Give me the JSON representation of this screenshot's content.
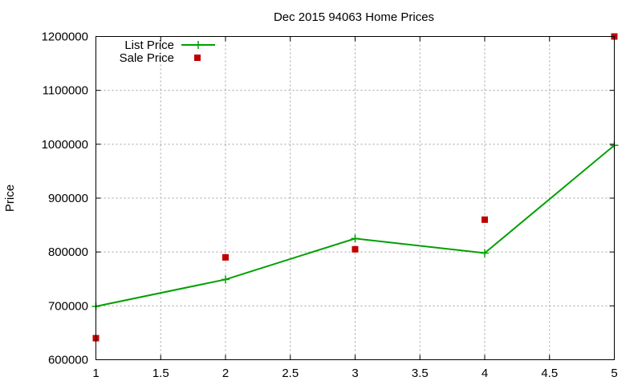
{
  "chart_data": {
    "type": "line",
    "title": "Dec 2015 94063 Home Prices",
    "xlabel": "",
    "ylabel": "Price",
    "xlim": [
      1,
      5
    ],
    "ylim": [
      600000,
      1200000
    ],
    "x_ticks": [
      "1",
      "1.5",
      "2",
      "2.5",
      "3",
      "3.5",
      "4",
      "4.5",
      "5"
    ],
    "y_ticks": [
      "600000",
      "700000",
      "800000",
      "900000",
      "1000000",
      "1100000",
      "1200000"
    ],
    "grid": true,
    "legend_position": "top-left",
    "series": [
      {
        "name": "List Price",
        "style": "line-plus",
        "color": "#00a000",
        "x": [
          1,
          2,
          3,
          4,
          5
        ],
        "y": [
          699000,
          749000,
          825000,
          798000,
          998000
        ]
      },
      {
        "name": "Sale Price",
        "style": "square",
        "color": "#c00000",
        "x": [
          1,
          2,
          3,
          4,
          5
        ],
        "y": [
          640000,
          790000,
          805000,
          860000,
          1200000
        ]
      }
    ]
  }
}
